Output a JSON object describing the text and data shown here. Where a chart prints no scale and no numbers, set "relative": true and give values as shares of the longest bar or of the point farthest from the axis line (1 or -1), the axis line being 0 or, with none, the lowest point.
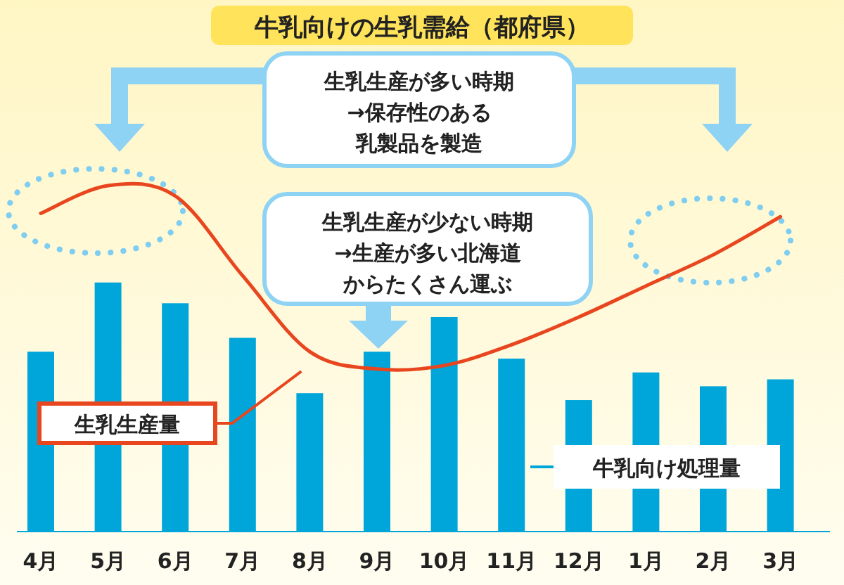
{
  "chart_data": {
    "type": "bar",
    "title": "牛乳向けの生乳需給（都府県）",
    "relative": true,
    "categories": [
      "4月",
      "5月",
      "6月",
      "7月",
      "8月",
      "9月",
      "10月",
      "11月",
      "12月",
      "1月",
      "2月",
      "3月"
    ],
    "series": [
      {
        "name": "牛乳向け処理量",
        "color": "#00a5d9",
        "values": [
          0.52,
          0.72,
          0.66,
          0.56,
          0.4,
          0.52,
          0.62,
          0.5,
          0.38,
          0.46,
          0.42,
          0.44
        ]
      },
      {
        "name": "生乳生産量",
        "type": "line",
        "color": "#e8461e",
        "values": [
          0.92,
          1.0,
          0.97,
          0.74,
          0.52,
          0.47,
          0.48,
          0.54,
          0.62,
          0.71,
          0.8,
          0.91
        ]
      }
    ],
    "annotations": [
      "生乳生産が多い時期→保存性のある乳製品を製造",
      "生乳生産が少ない時期→生産が多い北海道からたくさん運ぶ"
    ]
  }
}
